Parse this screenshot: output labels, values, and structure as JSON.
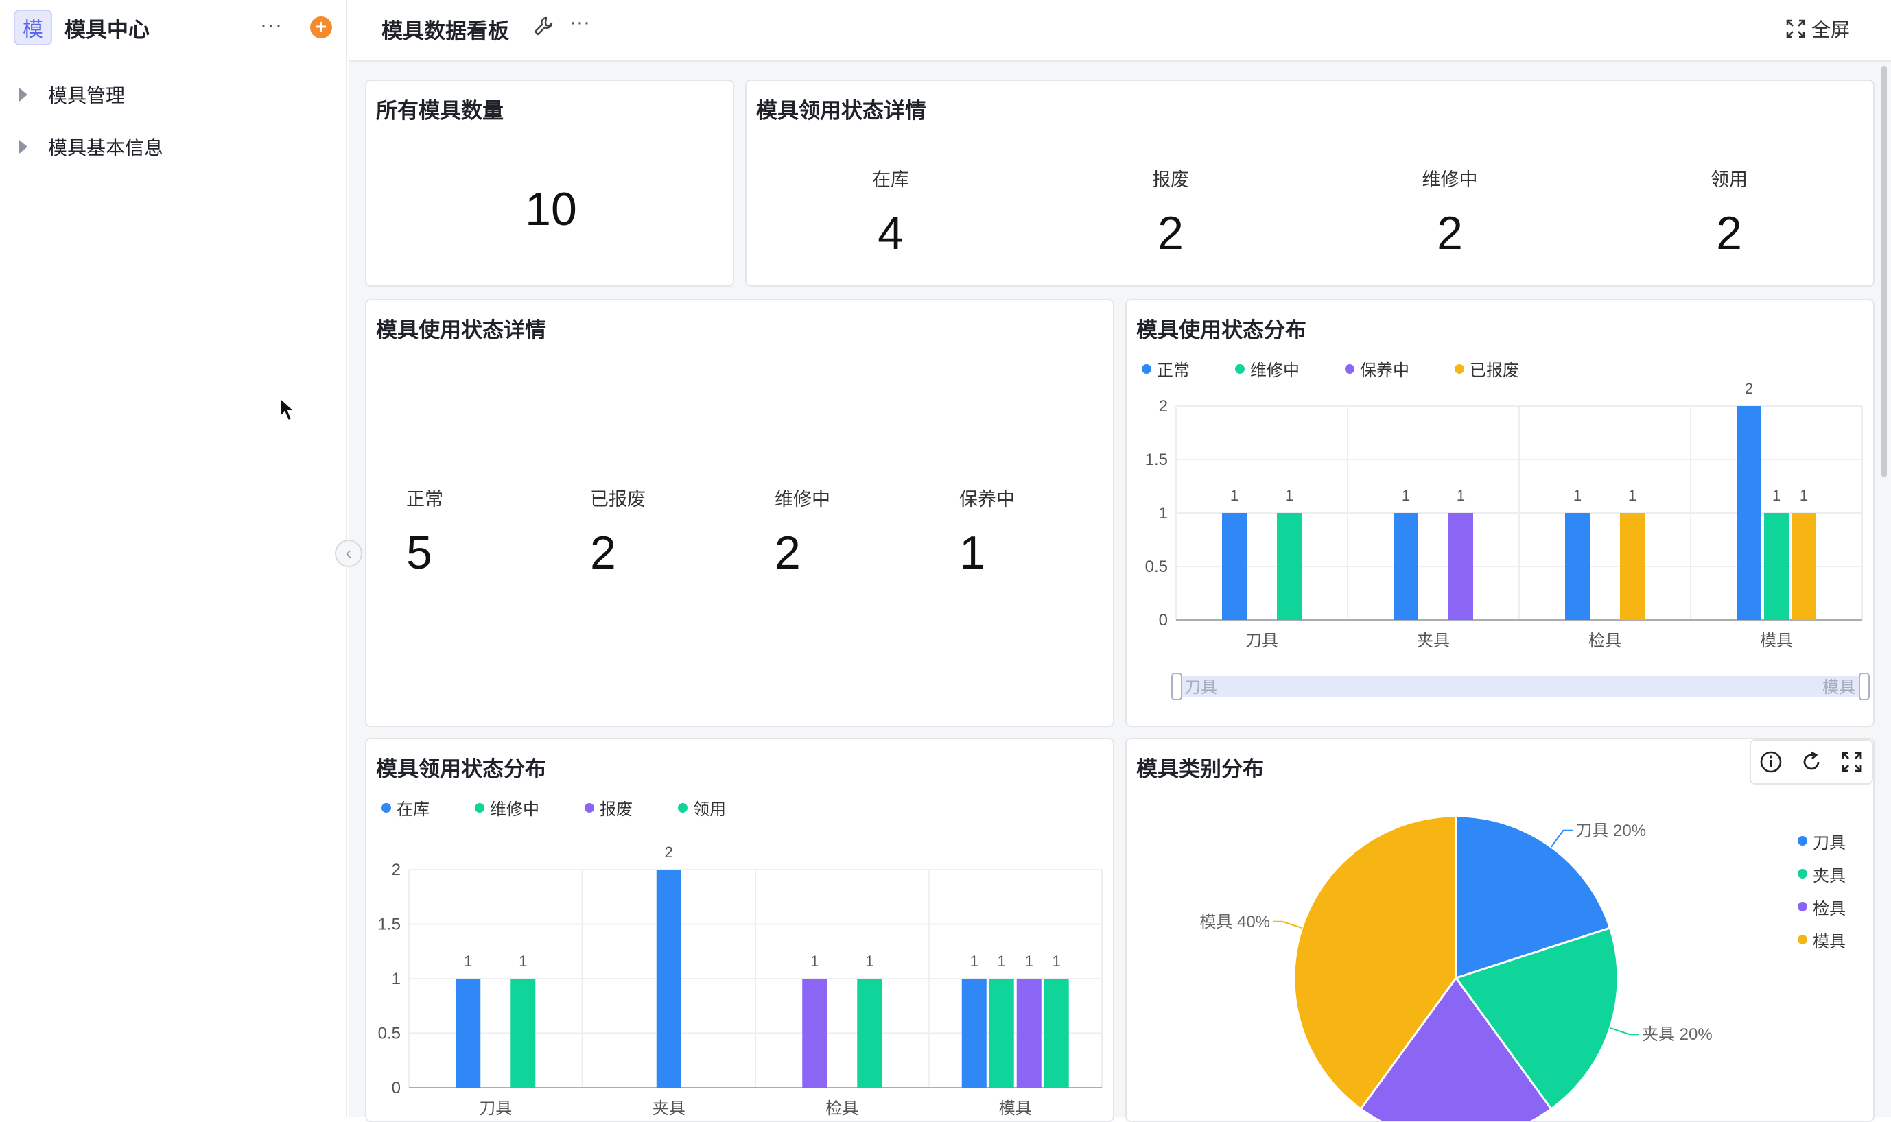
{
  "sidebar": {
    "logo_char": "模",
    "app_title": "模具中心",
    "more": "···",
    "add": "+",
    "items": [
      {
        "label": "模具管理"
      },
      {
        "label": "模具基本信息"
      }
    ]
  },
  "header": {
    "title": "模具数据看板",
    "more": "···",
    "fullscreen_label": "全屏"
  },
  "cards": {
    "total": {
      "title": "所有模具数量",
      "value": "10"
    },
    "borrow_detail": {
      "title": "模具领用状态详情",
      "stats": [
        {
          "label": "在库",
          "value": "4"
        },
        {
          "label": "报废",
          "value": "2"
        },
        {
          "label": "维修中",
          "value": "2"
        },
        {
          "label": "领用",
          "value": "2"
        }
      ]
    },
    "usage_detail": {
      "title": "模具使用状态详情",
      "stats": [
        {
          "label": "正常",
          "value": "5"
        },
        {
          "label": "已报废",
          "value": "2"
        },
        {
          "label": "维修中",
          "value": "2"
        },
        {
          "label": "保养中",
          "value": "1"
        }
      ]
    },
    "usage_dist": {
      "title": "模具使用状态分布"
    },
    "borrow_dist": {
      "title": "模具领用状态分布"
    },
    "category_dist": {
      "title": "模具类别分布"
    }
  },
  "colors": {
    "blue": "#2f88f5",
    "green": "#10d59b",
    "purple": "#8b65f4",
    "orange": "#f7b514"
  },
  "chart_data": [
    {
      "id": "usage",
      "type": "bar",
      "title": "模具使用状态分布",
      "categories": [
        "刀具",
        "夹具",
        "检具",
        "模具"
      ],
      "series": [
        {
          "name": "正常",
          "color": "#2f88f5",
          "values": [
            1,
            1,
            1,
            2
          ]
        },
        {
          "name": "维修中",
          "color": "#10d59b",
          "values": [
            1,
            null,
            null,
            1
          ]
        },
        {
          "name": "保养中",
          "color": "#8b65f4",
          "values": [
            null,
            1,
            null,
            null
          ]
        },
        {
          "name": "已报废",
          "color": "#f7b514",
          "values": [
            null,
            null,
            1,
            1
          ]
        }
      ],
      "yticks": [
        "0",
        "0.5",
        "1",
        "1.5",
        "2"
      ],
      "ylim": [
        0,
        2
      ],
      "zoom": {
        "start_label": "刀具",
        "end_label": "模具"
      }
    },
    {
      "id": "borrow",
      "type": "bar",
      "title": "模具领用状态分布",
      "categories": [
        "刀具",
        "夹具",
        "检具",
        "模具"
      ],
      "series": [
        {
          "name": "在库",
          "color": "#2f88f5",
          "values": [
            1,
            2,
            null,
            1
          ]
        },
        {
          "name": "维修中",
          "color": "#10d59b",
          "values": [
            1,
            null,
            null,
            1
          ]
        },
        {
          "name": "报废",
          "color": "#8b65f4",
          "values": [
            null,
            null,
            1,
            1
          ]
        },
        {
          "name": "领用",
          "color": "#10d59b",
          "values": [
            null,
            null,
            1,
            1
          ]
        }
      ],
      "yticks": [
        "0",
        "0.5",
        "1",
        "1.5",
        "2"
      ],
      "ylim": [
        0,
        2
      ]
    },
    {
      "id": "category",
      "type": "pie",
      "title": "模具类别分布",
      "slices": [
        {
          "name": "刀具",
          "value": 20,
          "label": "刀具 20%",
          "color": "#2f88f5"
        },
        {
          "name": "夹具",
          "value": 20,
          "label": "夹具 20%",
          "color": "#10d59b"
        },
        {
          "name": "检具",
          "value": 20,
          "label": "",
          "color": "#8b65f4"
        },
        {
          "name": "模具",
          "value": 40,
          "label": "模具 40%",
          "color": "#f7b514"
        }
      ]
    }
  ]
}
